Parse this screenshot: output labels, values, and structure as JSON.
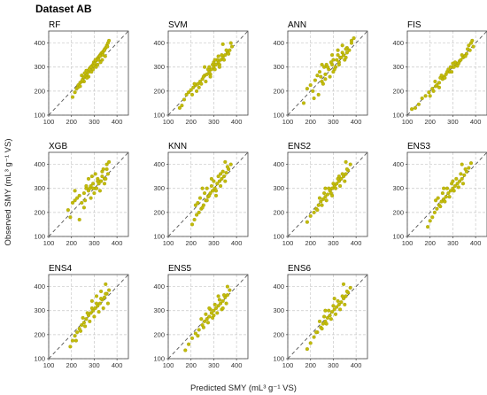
{
  "figure": {
    "title": "Dataset AB",
    "xlabel": "Predicted SMY (mL³ g⁻¹ VS)",
    "ylabel": "Observed SMY (mL³ g⁻¹ VS)"
  },
  "colors": {
    "point": "#c2bb0a",
    "point_edge": "#9a9400",
    "ref_line": "#555555",
    "grid": "#c8c8c8",
    "frame": "#444444"
  },
  "chart_data": [
    {
      "type": "scatter",
      "title": "RF",
      "xlim": [
        100,
        450
      ],
      "ylim": [
        100,
        450
      ],
      "xticks": [
        100,
        200,
        300,
        400
      ],
      "yticks": [
        100,
        200,
        300,
        400
      ],
      "reference_line": "y = x",
      "grid": true,
      "x": [
        205,
        215,
        222,
        230,
        238,
        245,
        250,
        256,
        262,
        268,
        272,
        276,
        280,
        285,
        290,
        295,
        298,
        302,
        306,
        310,
        314,
        318,
        322,
        326,
        330,
        334,
        338,
        342,
        346,
        350,
        355,
        360,
        245,
        255,
        265,
        275,
        285,
        295,
        305,
        315,
        325,
        335,
        345,
        228,
        238,
        248,
        258,
        268,
        278,
        288,
        298,
        308,
        318,
        328,
        338,
        348,
        358,
        365
      ],
      "y": [
        175,
        195,
        210,
        225,
        235,
        240,
        250,
        258,
        262,
        270,
        285,
        280,
        295,
        300,
        305,
        310,
        320,
        315,
        325,
        330,
        335,
        340,
        345,
        350,
        355,
        360,
        362,
        368,
        375,
        380,
        390,
        400,
        265,
        240,
        285,
        260,
        300,
        290,
        330,
        310,
        345,
        330,
        370,
        215,
        220,
        245,
        275,
        255,
        290,
        280,
        305,
        300,
        330,
        320,
        350,
        345,
        385,
        410
      ]
    },
    {
      "type": "scatter",
      "title": "SVM",
      "xlim": [
        100,
        450
      ],
      "ylim": [
        100,
        450
      ],
      "xticks": [
        100,
        200,
        300,
        400
      ],
      "yticks": [
        100,
        200,
        300,
        400
      ],
      "reference_line": "y = x",
      "grid": true,
      "x": [
        150,
        160,
        170,
        180,
        190,
        200,
        210,
        220,
        230,
        240,
        250,
        260,
        270,
        280,
        290,
        300,
        310,
        320,
        330,
        340,
        350,
        360,
        370,
        380,
        225,
        235,
        245,
        255,
        265,
        275,
        285,
        295,
        305,
        315,
        325,
        335,
        345,
        355,
        365,
        375,
        260,
        280,
        300,
        320,
        340,
        205,
        215,
        285,
        305,
        325
      ],
      "y": [
        130,
        140,
        165,
        185,
        195,
        205,
        215,
        225,
        230,
        240,
        250,
        265,
        270,
        280,
        290,
        300,
        310,
        320,
        330,
        340,
        350,
        360,
        370,
        385,
        200,
        215,
        230,
        260,
        240,
        290,
        270,
        310,
        290,
        330,
        310,
        350,
        330,
        370,
        355,
        400,
        300,
        300,
        320,
        345,
        395,
        185,
        230,
        260,
        330,
        300
      ]
    },
    {
      "type": "scatter",
      "title": "ANN",
      "xlim": [
        100,
        450
      ],
      "ylim": [
        100,
        450
      ],
      "xticks": [
        100,
        200,
        300,
        400
      ],
      "yticks": [
        100,
        200,
        300,
        400
      ],
      "reference_line": "y = x",
      "grid": true,
      "x": [
        170,
        185,
        200,
        210,
        220,
        230,
        240,
        250,
        260,
        270,
        280,
        290,
        300,
        310,
        320,
        330,
        340,
        350,
        360,
        370,
        380,
        390,
        245,
        255,
        265,
        275,
        285,
        295,
        305,
        315,
        325,
        335,
        345,
        355,
        235,
        265,
        295,
        325,
        355,
        215,
        250,
        300,
        320,
        340,
        360,
        380
      ],
      "y": [
        150,
        210,
        225,
        200,
        245,
        265,
        280,
        240,
        300,
        310,
        290,
        320,
        330,
        300,
        350,
        340,
        360,
        330,
        380,
        370,
        400,
        420,
        260,
        230,
        270,
        300,
        260,
        310,
        290,
        330,
        320,
        340,
        350,
        375,
        185,
        250,
        350,
        310,
        340,
        170,
        310,
        280,
        370,
        390,
        360,
        410
      ]
    },
    {
      "type": "scatter",
      "title": "FIS",
      "xlim": [
        100,
        450
      ],
      "ylim": [
        100,
        450
      ],
      "xticks": [
        100,
        200,
        300,
        400
      ],
      "yticks": [
        100,
        200,
        300,
        400
      ],
      "reference_line": "y = x",
      "grid": true,
      "x": [
        120,
        135,
        150,
        165,
        180,
        195,
        210,
        225,
        240,
        255,
        270,
        285,
        300,
        315,
        330,
        345,
        360,
        375,
        390,
        200,
        215,
        230,
        245,
        260,
        275,
        290,
        305,
        320,
        335,
        350,
        365,
        380,
        250,
        265,
        280,
        295,
        310,
        325,
        340,
        355,
        370,
        385,
        222,
        240,
        300,
        320
      ],
      "y": [
        125,
        130,
        145,
        170,
        180,
        195,
        210,
        220,
        235,
        250,
        270,
        280,
        300,
        310,
        325,
        340,
        355,
        370,
        385,
        180,
        200,
        225,
        255,
        260,
        280,
        300,
        300,
        315,
        330,
        345,
        375,
        400,
        265,
        255,
        290,
        280,
        320,
        315,
        350,
        345,
        390,
        410,
        240,
        215,
        315,
        305
      ]
    },
    {
      "type": "scatter",
      "title": "XGB",
      "xlim": [
        100,
        450
      ],
      "ylim": [
        100,
        450
      ],
      "xticks": [
        100,
        200,
        300,
        400
      ],
      "yticks": [
        100,
        200,
        300,
        400
      ],
      "reference_line": "y = x",
      "grid": true,
      "x": [
        185,
        195,
        205,
        215,
        225,
        235,
        245,
        255,
        265,
        275,
        285,
        295,
        305,
        315,
        325,
        335,
        345,
        355,
        365,
        255,
        265,
        275,
        285,
        295,
        305,
        315,
        325,
        335,
        345,
        355,
        215,
        235,
        260,
        280,
        300,
        320,
        340,
        360,
        290,
        310,
        330,
        350
      ],
      "y": [
        210,
        180,
        240,
        250,
        260,
        270,
        240,
        280,
        300,
        290,
        310,
        320,
        300,
        340,
        330,
        350,
        340,
        380,
        410,
        220,
        310,
        340,
        260,
        300,
        360,
        330,
        290,
        370,
        320,
        400,
        290,
        170,
        250,
        300,
        280,
        320,
        380,
        360,
        350,
        300,
        330,
        340
      ]
    },
    {
      "type": "scatter",
      "title": "KNN",
      "xlim": [
        100,
        450
      ],
      "ylim": [
        100,
        450
      ],
      "xticks": [
        100,
        200,
        300,
        400
      ],
      "yticks": [
        100,
        200,
        300,
        400
      ],
      "reference_line": "y = x",
      "grid": true,
      "x": [
        205,
        215,
        225,
        235,
        245,
        255,
        265,
        275,
        285,
        295,
        305,
        315,
        325,
        335,
        345,
        355,
        365,
        375,
        230,
        240,
        250,
        260,
        270,
        280,
        290,
        300,
        310,
        320,
        330,
        340,
        350,
        360,
        220,
        250,
        270,
        290,
        310,
        330,
        350
      ],
      "y": [
        150,
        170,
        190,
        200,
        215,
        230,
        250,
        265,
        280,
        290,
        300,
        320,
        330,
        340,
        350,
        365,
        380,
        400,
        240,
        260,
        220,
        280,
        300,
        270,
        310,
        330,
        290,
        350,
        310,
        370,
        330,
        390,
        230,
        300,
        250,
        340,
        270,
        360,
        410
      ]
    },
    {
      "type": "scatter",
      "title": "ENS2",
      "xlim": [
        100,
        450
      ],
      "ylim": [
        100,
        450
      ],
      "xticks": [
        100,
        200,
        300,
        400
      ],
      "yticks": [
        100,
        200,
        300,
        400
      ],
      "reference_line": "y = x",
      "grid": true,
      "x": [
        185,
        200,
        215,
        225,
        235,
        245,
        255,
        265,
        275,
        285,
        295,
        305,
        315,
        325,
        335,
        345,
        355,
        365,
        375,
        240,
        250,
        260,
        270,
        280,
        290,
        300,
        310,
        320,
        330,
        340,
        350,
        360,
        230,
        265,
        295,
        325,
        355
      ],
      "y": [
        160,
        185,
        200,
        215,
        230,
        245,
        255,
        265,
        275,
        290,
        300,
        310,
        320,
        330,
        340,
        350,
        360,
        375,
        400,
        260,
        230,
        280,
        250,
        300,
        280,
        320,
        300,
        340,
        310,
        360,
        330,
        380,
        210,
        300,
        270,
        350,
        410
      ]
    },
    {
      "type": "scatter",
      "title": "ENS3",
      "xlim": [
        100,
        450
      ],
      "ylim": [
        100,
        450
      ],
      "xticks": [
        100,
        200,
        300,
        400
      ],
      "yticks": [
        100,
        200,
        300,
        400
      ],
      "reference_line": "y = x",
      "grid": true,
      "x": [
        190,
        200,
        210,
        220,
        230,
        240,
        250,
        260,
        270,
        280,
        290,
        300,
        310,
        320,
        330,
        340,
        350,
        360,
        370,
        380,
        235,
        245,
        255,
        265,
        275,
        285,
        295,
        305,
        315,
        325,
        335,
        345,
        355,
        225,
        260,
        300,
        340
      ],
      "y": [
        140,
        165,
        180,
        200,
        215,
        230,
        245,
        255,
        265,
        280,
        290,
        300,
        310,
        320,
        330,
        340,
        355,
        370,
        385,
        405,
        260,
        225,
        280,
        245,
        300,
        265,
        320,
        290,
        340,
        305,
        360,
        320,
        380,
        250,
        300,
        330,
        400
      ]
    },
    {
      "type": "scatter",
      "title": "ENS4",
      "xlim": [
        100,
        450
      ],
      "ylim": [
        100,
        450
      ],
      "xticks": [
        100,
        200,
        300,
        400
      ],
      "yticks": [
        100,
        200,
        300,
        400
      ],
      "reference_line": "y = x",
      "grid": true,
      "x": [
        195,
        205,
        215,
        225,
        235,
        245,
        255,
        265,
        275,
        285,
        295,
        305,
        315,
        325,
        335,
        345,
        355,
        365,
        250,
        260,
        270,
        280,
        290,
        300,
        310,
        320,
        330,
        340,
        350,
        360,
        220,
        240,
        290,
        310,
        330,
        350
      ],
      "y": [
        150,
        175,
        195,
        210,
        225,
        240,
        250,
        265,
        280,
        290,
        300,
        310,
        320,
        330,
        345,
        355,
        370,
        385,
        270,
        235,
        290,
        255,
        310,
        275,
        330,
        295,
        350,
        310,
        370,
        330,
        175,
        215,
        340,
        360,
        380,
        410
      ]
    },
    {
      "type": "scatter",
      "title": "ENS5",
      "xlim": [
        100,
        450
      ],
      "ylim": [
        100,
        450
      ],
      "xticks": [
        100,
        200,
        300,
        400
      ],
      "yticks": [
        100,
        200,
        300,
        400
      ],
      "reference_line": "y = x",
      "grid": true,
      "x": [
        175,
        190,
        205,
        220,
        235,
        250,
        260,
        270,
        280,
        290,
        300,
        310,
        320,
        330,
        340,
        350,
        360,
        370,
        245,
        255,
        265,
        275,
        285,
        295,
        305,
        315,
        325,
        335,
        345,
        355,
        230,
        280,
        300,
        320,
        340,
        360
      ],
      "y": [
        135,
        160,
        185,
        205,
        220,
        240,
        255,
        265,
        275,
        290,
        300,
        310,
        320,
        330,
        340,
        355,
        365,
        385,
        265,
        230,
        285,
        250,
        305,
        270,
        325,
        290,
        345,
        305,
        365,
        330,
        195,
        310,
        280,
        360,
        310,
        400
      ]
    },
    {
      "type": "scatter",
      "title": "ENS6",
      "xlim": [
        100,
        450
      ],
      "ylim": [
        100,
        450
      ],
      "xticks": [
        100,
        200,
        300,
        400
      ],
      "yticks": [
        100,
        200,
        300,
        400
      ],
      "reference_line": "y = x",
      "grid": true,
      "x": [
        185,
        200,
        215,
        230,
        245,
        255,
        265,
        275,
        285,
        295,
        305,
        315,
        325,
        335,
        345,
        355,
        365,
        375,
        240,
        250,
        260,
        270,
        280,
        290,
        300,
        310,
        320,
        330,
        340,
        350,
        360,
        225,
        265,
        305,
        345
      ],
      "y": [
        140,
        165,
        190,
        210,
        230,
        245,
        255,
        270,
        280,
        295,
        305,
        315,
        325,
        335,
        350,
        360,
        375,
        395,
        255,
        225,
        275,
        245,
        300,
        265,
        320,
        285,
        340,
        305,
        360,
        325,
        380,
        210,
        300,
        350,
        410
      ]
    }
  ]
}
